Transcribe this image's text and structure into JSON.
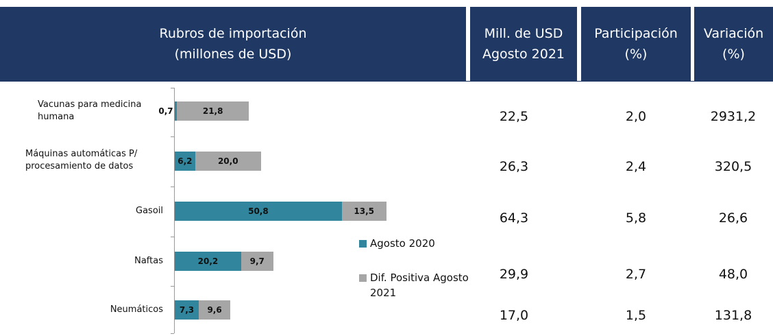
{
  "header": {
    "cells": [
      "Rubros de importación\n(millones de USD)",
      "Mill. de USD\nAgosto 2021",
      "Participación\n(%)",
      "Variación\n(%)"
    ]
  },
  "chart_data": {
    "type": "bar",
    "orientation": "horizontal",
    "stacked": true,
    "categories": [
      "Vacunas para medicina humana",
      "Máquinas automáticas P/ procesamiento de datos",
      "Gasoil",
      "Naftas",
      "Neumáticos"
    ],
    "series": [
      {
        "name": "Agosto 2020",
        "color": "#31859c",
        "values": [
          0.7,
          6.2,
          50.8,
          20.2,
          7.3
        ],
        "value_labels": [
          "0,7",
          "6,2",
          "50,8",
          "20,2",
          "7,3"
        ]
      },
      {
        "name": "Dif. Positiva Agosto 2021",
        "color": "#a6a6a6",
        "values": [
          21.8,
          20.0,
          13.5,
          9.7,
          9.6
        ],
        "value_labels": [
          "21,8",
          "20,0",
          "13,5",
          "9,7",
          "9,6"
        ]
      }
    ],
    "xlim": [
      0,
      100
    ]
  },
  "table": {
    "rows": [
      [
        "22,5",
        "2,0",
        "2931,2"
      ],
      [
        "26,3",
        "2,4",
        "320,5"
      ],
      [
        "64,3",
        "5,8",
        "26,6"
      ],
      [
        "29,9",
        "2,7",
        "48,0"
      ],
      [
        "17,0",
        "1,5",
        "131,8"
      ]
    ]
  }
}
